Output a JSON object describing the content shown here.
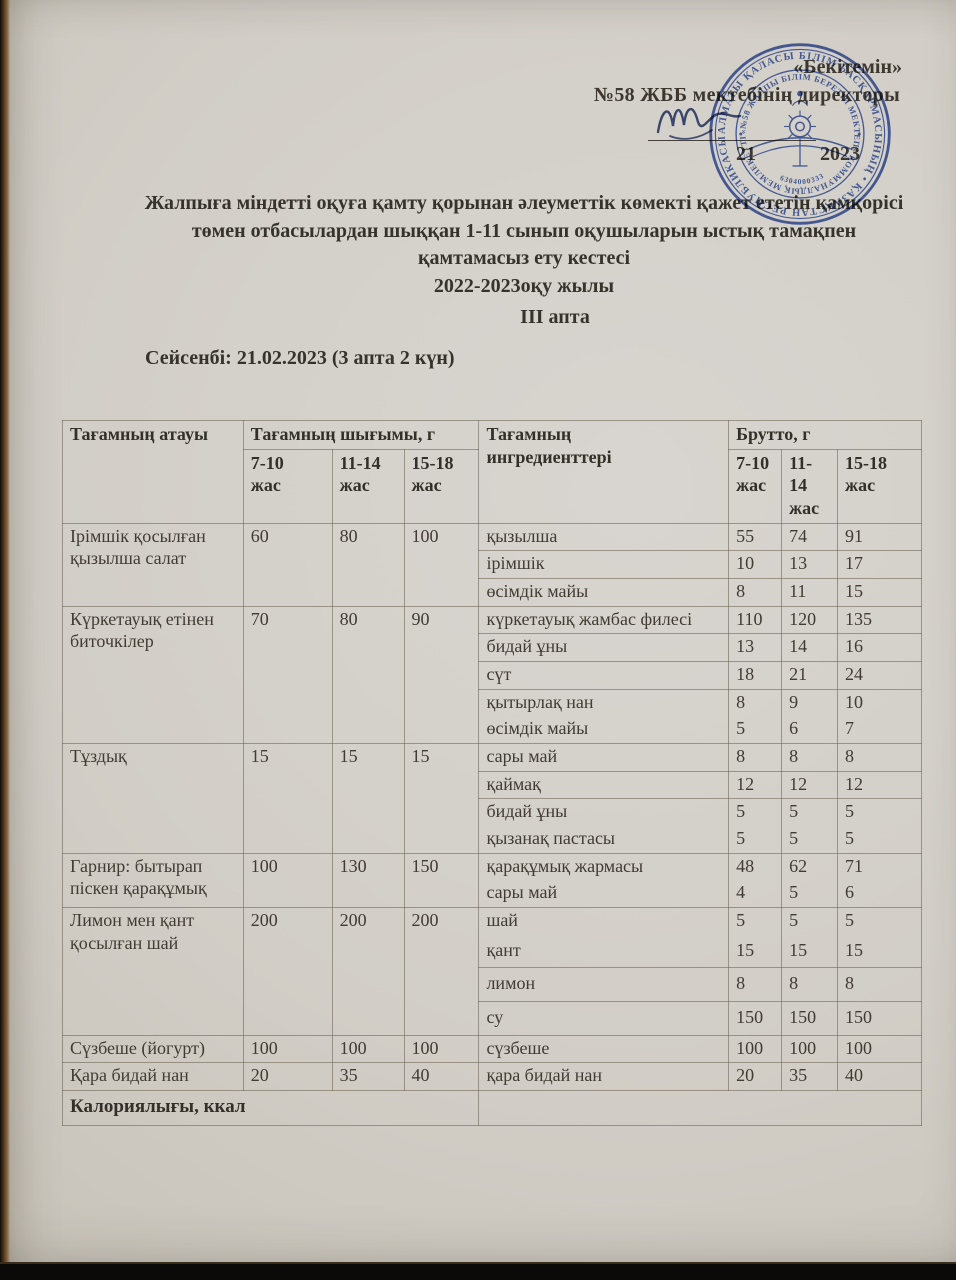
{
  "header": {
    "approve": "«Бекітемін»",
    "director_line": "№58 ЖББ мектебінің директоры",
    "date_day": "21",
    "date_year": "2023"
  },
  "title": {
    "line1": "Жалпыға міндетті оқуға қамту қорынан әлеуметтік көмекті қажет ететін қамқорісі",
    "line2": "төмен отбасылардан шыққан 1-11 сынып оқушыларын ыстық тамақпен",
    "line3": "қамтамасыз ету кестесі",
    "line4": "2022-2023оқу жылы",
    "week": "ІІІ апта",
    "day_line": "Сейсенбі: 21.02.2023 (3 апта 2 күн)"
  },
  "stamp": {
    "outer_ring": "АЛМАТЫ ҚАЛАСЫ БІЛІМ БАСҚАРМАСЫНЫҢ  •  ҚАЗАҚСТАН РЕСПУБЛИКАСЫ  •",
    "inner_ring": "«№58 ЖАЛПЫ БІЛІМ БЕРЕТІН МЕКТЕП» КОММУНАЛДЫҚ МЕМЛЕКЕТТІК МЕКЕМЕСІ",
    "number": "6304000333",
    "ink_color": "#3a57ab"
  },
  "table": {
    "col_dish": "Тағамның атауы",
    "col_output": "Тағамның шығымы, г",
    "col_ingredients": "Тағамның\nингредиенттері",
    "col_brutto": "Брутто, г",
    "age_cols": [
      "7-10\nжас",
      "11-14\nжас",
      "15-18\nжас"
    ],
    "footer": "Калориялығы, ккал",
    "blocks": [
      {
        "dish": "Ірімшік қосылған қызылша салат",
        "out": [
          "60",
          "80",
          "100"
        ],
        "ingredients": [
          {
            "name": "қызылша",
            "b": [
              "55",
              "74",
              "91"
            ]
          },
          {
            "name": "ірімшік",
            "b": [
              "10",
              "13",
              "17"
            ]
          },
          {
            "name": "өсімдік майы",
            "b": [
              "8",
              "11",
              "15"
            ]
          }
        ]
      },
      {
        "dish": "Күркетауық етінен биточкілер",
        "out": [
          "70",
          "80",
          "90"
        ],
        "ingredients": [
          {
            "name": "күркетауық жамбас филесі",
            "b": [
              "110",
              "120",
              "135"
            ]
          },
          {
            "name": "бидай ұны",
            "b": [
              "13",
              "14",
              "16"
            ]
          },
          {
            "name": "сүт",
            "b": [
              "18",
              "21",
              "24"
            ]
          },
          {
            "name": "қытырлақ нан",
            "b": [
              "8",
              "9",
              "10"
            ]
          },
          {
            "name": "өсімдік майы",
            "b": [
              "5",
              "6",
              "7"
            ],
            "merge": true
          }
        ]
      },
      {
        "dish": "Тұздық",
        "out": [
          "15",
          "15",
          "15"
        ],
        "ingredients": [
          {
            "name": "сары май",
            "b": [
              "8",
              "8",
              "8"
            ]
          },
          {
            "name": "қаймақ",
            "b": [
              "12",
              "12",
              "12"
            ]
          },
          {
            "name": "бидай ұны",
            "b": [
              "5",
              "5",
              "5"
            ]
          },
          {
            "name": "қызанақ пастасы",
            "b": [
              "5",
              "5",
              "5"
            ],
            "merge": true
          }
        ]
      },
      {
        "dish": "Гарнир: бытырап піскен қарақұмық",
        "out": [
          "100",
          "130",
          "150"
        ],
        "ingredients": [
          {
            "name": "қарақұмық жармасы",
            "b": [
              "48",
              "62",
              "71"
            ]
          },
          {
            "name": "сары май",
            "b": [
              "4",
              "5",
              "6"
            ],
            "merge": true
          }
        ]
      },
      {
        "dish": "Лимон мен қант қосылған шай",
        "out": [
          "200",
          "200",
          "200"
        ],
        "ingredients": [
          {
            "name": "шай",
            "b": [
              "5",
              "5",
              "5"
            ]
          },
          {
            "name": "қант",
            "b": [
              "15",
              "15",
              "15"
            ],
            "merge": true,
            "tall": true
          },
          {
            "name": "лимон",
            "b": [
              "8",
              "8",
              "8"
            ],
            "tall": true
          },
          {
            "name": "су",
            "b": [
              "150",
              "150",
              "150"
            ],
            "tall": true
          }
        ]
      },
      {
        "dish": "Сүзбеше (йогурт)",
        "out": [
          "100",
          "100",
          "100"
        ],
        "ingredients": [
          {
            "name": "сүзбеше",
            "b": [
              "100",
              "100",
              "100"
            ]
          }
        ]
      },
      {
        "dish": "Қара бидай нан",
        "out": [
          "20",
          "35",
          "40"
        ],
        "ingredients": [
          {
            "name": "қара бидай нан",
            "b": [
              "20",
              "35",
              "40"
            ]
          }
        ]
      }
    ]
  }
}
